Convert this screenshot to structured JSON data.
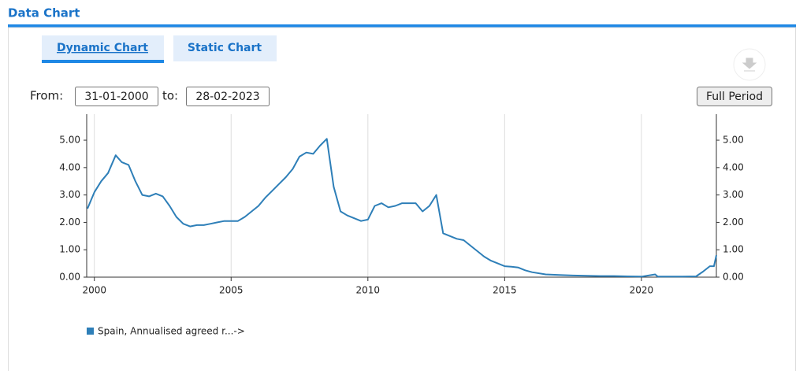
{
  "page": {
    "title": "Data Chart",
    "tabs": [
      "Dynamic Chart",
      "Static Chart"
    ],
    "from_label": "From:",
    "from_value": "31-01-2000",
    "to_label": "to:",
    "to_value": "28-02-2023",
    "button": "Full Period"
  },
  "chart_data": {
    "type": "line",
    "x": [
      1999.75,
      2000.0,
      2000.25,
      2000.5,
      2000.78,
      2001.0,
      2001.25,
      2001.5,
      2001.75,
      2002.0,
      2002.25,
      2002.5,
      2002.75,
      2003.0,
      2003.25,
      2003.5,
      2003.75,
      2004.0,
      2004.25,
      2004.5,
      2004.75,
      2005.0,
      2005.25,
      2005.5,
      2005.75,
      2006.0,
      2006.25,
      2006.5,
      2006.75,
      2007.0,
      2007.25,
      2007.5,
      2007.75,
      2008.0,
      2008.25,
      2008.5,
      2008.75,
      2009.0,
      2009.25,
      2009.5,
      2009.75,
      2010.0,
      2010.25,
      2010.5,
      2010.75,
      2011.0,
      2011.25,
      2011.5,
      2011.75,
      2012.0,
      2012.25,
      2012.5,
      2012.75,
      2013.0,
      2013.25,
      2013.5,
      2013.75,
      2014.0,
      2014.25,
      2014.5,
      2014.75,
      2015.0,
      2015.25,
      2015.5,
      2015.75,
      2016.0,
      2016.5,
      2017.0,
      2017.5,
      2018.0,
      2018.5,
      2019.0,
      2019.5,
      2020.0,
      2020.5,
      2020.6,
      2021.0,
      2021.5,
      2022.0,
      2022.25,
      2022.5,
      2022.65,
      2022.74
    ],
    "series": [
      {
        "name": "Spain, Annualised agreed r...->",
        "color": "#2e7fb8",
        "values": [
          2.5,
          3.1,
          3.5,
          3.8,
          4.45,
          4.2,
          4.1,
          3.5,
          3.0,
          2.95,
          3.05,
          2.95,
          2.6,
          2.2,
          1.95,
          1.85,
          1.9,
          1.9,
          1.95,
          2.0,
          2.05,
          2.05,
          2.05,
          2.2,
          2.4,
          2.6,
          2.9,
          3.15,
          3.4,
          3.65,
          3.95,
          4.4,
          4.55,
          4.5,
          4.8,
          5.05,
          3.3,
          2.4,
          2.25,
          2.15,
          2.05,
          2.1,
          2.6,
          2.7,
          2.55,
          2.6,
          2.7,
          2.7,
          2.7,
          2.4,
          2.6,
          3.0,
          1.6,
          1.5,
          1.4,
          1.35,
          1.15,
          0.95,
          0.75,
          0.6,
          0.5,
          0.4,
          0.38,
          0.35,
          0.25,
          0.18,
          0.1,
          0.08,
          0.06,
          0.05,
          0.04,
          0.04,
          0.03,
          0.02,
          0.1,
          0.02,
          0.02,
          0.02,
          0.03,
          0.2,
          0.4,
          0.4,
          0.8
        ]
      }
    ],
    "xlim": [
      1999.72,
      2022.74
    ],
    "xticks": [
      2000,
      2005,
      2010,
      2015,
      2020
    ],
    "ylim": [
      0,
      5.95
    ],
    "yticks": [
      {
        "value": 0,
        "label": "0.00"
      },
      {
        "value": 1,
        "label": "1.00"
      },
      {
        "value": 2,
        "label": "2.00"
      },
      {
        "value": 3,
        "label": "3.00"
      },
      {
        "value": 4,
        "label": "4.00"
      },
      {
        "value": 5,
        "label": "5.00"
      }
    ],
    "y2lim": [
      0,
      5.95
    ],
    "y2ticks": [
      {
        "value": 0,
        "label": "0.00"
      },
      {
        "value": 1,
        "label": "1.00"
      },
      {
        "value": 2,
        "label": "2.00"
      },
      {
        "value": 3,
        "label": "3.00"
      },
      {
        "value": 4,
        "label": "4.00"
      },
      {
        "value": 5,
        "label": "5.00"
      }
    ],
    "grid": true
  }
}
